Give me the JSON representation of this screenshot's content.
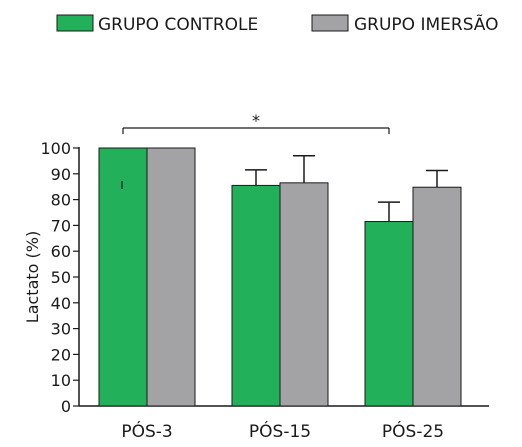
{
  "chart_data": {
    "type": "bar",
    "title": "",
    "xlabel": "",
    "ylabel": "Lactato (%)",
    "ylim": [
      0,
      100
    ],
    "yticks": [
      0,
      10,
      20,
      30,
      40,
      50,
      60,
      70,
      80,
      90,
      100
    ],
    "categories": [
      "PÓS-3",
      "PÓS-15",
      "PÓS-25"
    ],
    "legend_position": "top",
    "grid": false,
    "series": [
      {
        "name": "GRUPO CONTROLE",
        "color": "#22b05a",
        "values": [
          100,
          85.5,
          71.5
        ],
        "errors": [
          0,
          6,
          7.5
        ]
      },
      {
        "name": "GRUPO IMERSÃO",
        "color": "#a3a3a6",
        "values": [
          100,
          86.5,
          84.8
        ],
        "errors": [
          0,
          10.5,
          6.5
        ]
      }
    ],
    "annotations": [
      {
        "text": "*",
        "from_category": "PÓS-3",
        "to_category": "PÓS-25"
      }
    ]
  }
}
